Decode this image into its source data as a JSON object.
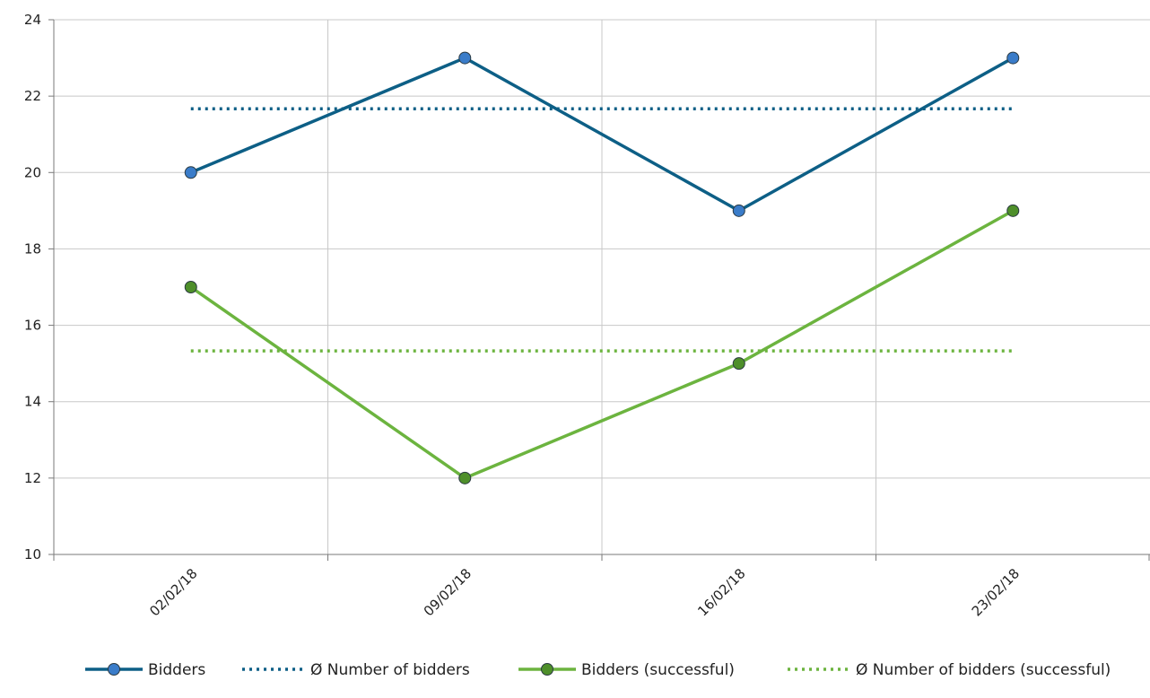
{
  "chart_data": {
    "type": "line",
    "categories": [
      "02/02/18",
      "09/02/18",
      "16/02/18",
      "23/02/18"
    ],
    "ylim": [
      10,
      24
    ],
    "yticks": [
      10,
      12,
      14,
      16,
      18,
      20,
      22,
      24
    ],
    "grid": true,
    "legend_position": "bottom",
    "series": [
      {
        "name": "Bidders",
        "values": [
          20,
          23,
          19,
          23
        ],
        "color": "#0d5f86",
        "style": "solid",
        "markers": true,
        "marker_color": "#3a7cc9"
      },
      {
        "name": "Ø Number of bidders",
        "values": [
          21.67,
          21.67,
          21.67,
          21.67
        ],
        "color": "#0d5f86",
        "style": "dotted",
        "markers": false
      },
      {
        "name": "Bidders (successful)",
        "values": [
          17,
          12,
          15,
          19
        ],
        "color": "#6cb43f",
        "style": "solid",
        "markers": true,
        "marker_color": "#4e8f2a"
      },
      {
        "name": "Ø Number of bidders (successful)",
        "values": [
          15.33,
          15.33,
          15.33,
          15.33
        ],
        "color": "#6cb43f",
        "style": "dotted",
        "markers": false
      }
    ]
  }
}
